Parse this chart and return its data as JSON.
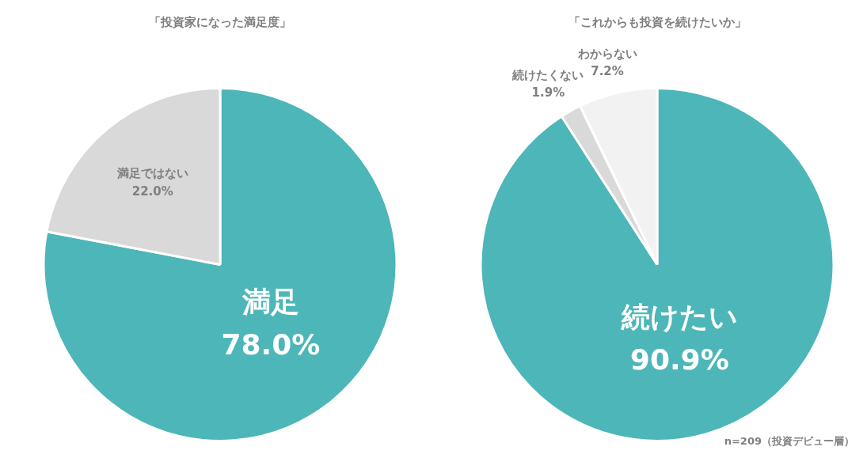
{
  "chart_data": [
    {
      "type": "pie",
      "title": "「投資家になった満足度」",
      "categories": [
        "満足",
        "満足ではない"
      ],
      "values": [
        78.0,
        22.0
      ],
      "colors": [
        "#4db6b8",
        "#d9d9d9"
      ],
      "value_labels": [
        "78.0%",
        "22.0%"
      ],
      "legend": false
    },
    {
      "type": "pie",
      "title": "「これからも投資を続けたいか」",
      "categories": [
        "続けたい",
        "続けたくない",
        "わからない"
      ],
      "values": [
        90.9,
        1.9,
        7.2
      ],
      "colors": [
        "#4db6b8",
        "#d9d9d9",
        "#f2f2f2"
      ],
      "value_labels": [
        "90.9%",
        "1.9%",
        "7.2%"
      ],
      "legend": false,
      "annotations": [
        "n=209（投資デビュー層）"
      ]
    }
  ]
}
